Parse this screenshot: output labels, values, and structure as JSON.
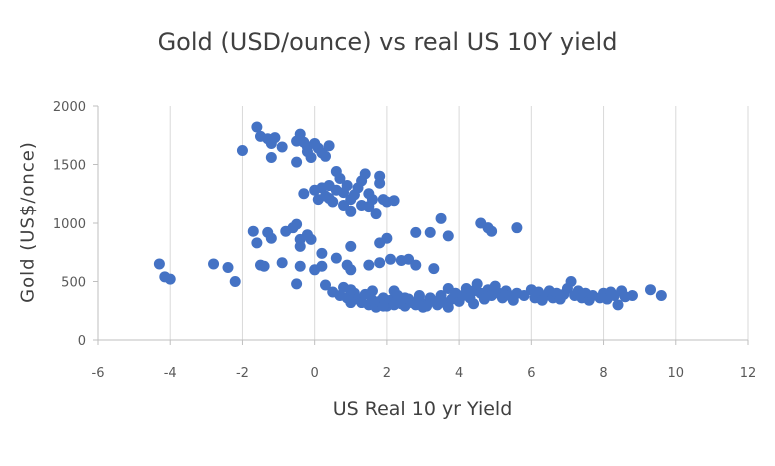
{
  "chart_data": {
    "type": "scatter",
    "title": "Gold (USD/ounce)  vs real US 10Y yield",
    "xlabel": "US Real 10 yr Yield",
    "ylabel": "Gold (US$/once)",
    "xlim": [
      -6,
      12
    ],
    "ylim": [
      0,
      2000
    ],
    "x_ticks": [
      -6,
      -4,
      -2,
      0,
      2,
      4,
      6,
      8,
      10,
      12
    ],
    "y_ticks": [
      0,
      500,
      1000,
      1500,
      2000
    ],
    "grid": "vertical",
    "legend": "none",
    "colors": {
      "point": "#4472c4",
      "grid": "#d9d9d9",
      "axis": "#bfbfbf"
    },
    "series": [
      {
        "points": [
          [
            -4.3,
            650
          ],
          [
            -4.15,
            540
          ],
          [
            -4.0,
            520
          ],
          [
            -2.8,
            650
          ],
          [
            -2.4,
            620
          ],
          [
            -2.2,
            500
          ],
          [
            -2.0,
            1620
          ],
          [
            -1.6,
            1820
          ],
          [
            -1.5,
            1740
          ],
          [
            -1.3,
            1720
          ],
          [
            -1.2,
            1680
          ],
          [
            -1.1,
            1730
          ],
          [
            -1.2,
            1560
          ],
          [
            -0.9,
            1650
          ],
          [
            -0.5,
            1700
          ],
          [
            -0.4,
            1760
          ],
          [
            -0.3,
            1690
          ],
          [
            -0.2,
            1650
          ],
          [
            -0.5,
            1520
          ],
          [
            -0.1,
            1560
          ],
          [
            0.1,
            1640
          ],
          [
            0.2,
            1600
          ],
          [
            0.4,
            1660
          ],
          [
            0.3,
            1570
          ],
          [
            0.0,
            1680
          ],
          [
            -0.2,
            1610
          ],
          [
            -0.3,
            1250
          ],
          [
            0.0,
            1280
          ],
          [
            0.1,
            1200
          ],
          [
            0.2,
            1300
          ],
          [
            0.3,
            1230
          ],
          [
            0.4,
            1320
          ],
          [
            0.5,
            1180
          ],
          [
            0.6,
            1280
          ],
          [
            0.6,
            1440
          ],
          [
            0.7,
            1380
          ],
          [
            0.8,
            1260
          ],
          [
            0.9,
            1320
          ],
          [
            1.0,
            1200
          ],
          [
            1.0,
            1100
          ],
          [
            1.1,
            1240
          ],
          [
            1.2,
            1300
          ],
          [
            1.3,
            1360
          ],
          [
            1.4,
            1420
          ],
          [
            1.5,
            1250
          ],
          [
            1.5,
            1140
          ],
          [
            1.6,
            1200
          ],
          [
            1.7,
            1080
          ],
          [
            1.8,
            1340
          ],
          [
            1.8,
            1400
          ],
          [
            1.9,
            1200
          ],
          [
            2.0,
            1180
          ],
          [
            2.2,
            1190
          ],
          [
            1.3,
            1150
          ],
          [
            0.8,
            1150
          ],
          [
            0.4,
            1210
          ],
          [
            -1.7,
            930
          ],
          [
            -1.6,
            830
          ],
          [
            -1.3,
            920
          ],
          [
            -1.2,
            870
          ],
          [
            -0.8,
            930
          ],
          [
            -0.6,
            960
          ],
          [
            -0.5,
            990
          ],
          [
            -0.4,
            860
          ],
          [
            -0.2,
            900
          ],
          [
            -0.1,
            860
          ],
          [
            -0.4,
            800
          ],
          [
            0.2,
            740
          ],
          [
            0.6,
            700
          ],
          [
            1.0,
            800
          ],
          [
            1.8,
            830
          ],
          [
            2.0,
            870
          ],
          [
            2.1,
            690
          ],
          [
            2.4,
            680
          ],
          [
            2.6,
            690
          ],
          [
            2.8,
            920
          ],
          [
            3.2,
            920
          ],
          [
            3.5,
            1040
          ],
          [
            3.7,
            890
          ],
          [
            4.6,
            1000
          ],
          [
            4.8,
            960
          ],
          [
            4.9,
            930
          ],
          [
            5.6,
            960
          ],
          [
            -1.5,
            640
          ],
          [
            -1.4,
            630
          ],
          [
            -0.9,
            660
          ],
          [
            -0.4,
            630
          ],
          [
            0.0,
            600
          ],
          [
            0.2,
            630
          ],
          [
            -0.5,
            480
          ],
          [
            0.3,
            470
          ],
          [
            0.9,
            640
          ],
          [
            1.0,
            600
          ],
          [
            1.5,
            640
          ],
          [
            1.8,
            660
          ],
          [
            2.8,
            640
          ],
          [
            3.3,
            610
          ],
          [
            0.5,
            410
          ],
          [
            0.7,
            380
          ],
          [
            0.9,
            360
          ],
          [
            1.0,
            430
          ],
          [
            1.1,
            400
          ],
          [
            1.2,
            350
          ],
          [
            1.3,
            320
          ],
          [
            1.4,
            390
          ],
          [
            1.5,
            300
          ],
          [
            1.6,
            340
          ],
          [
            1.7,
            280
          ],
          [
            1.8,
            330
          ],
          [
            1.9,
            360
          ],
          [
            2.0,
            290
          ],
          [
            2.1,
            340
          ],
          [
            2.2,
            300
          ],
          [
            2.3,
            380
          ],
          [
            2.4,
            310
          ],
          [
            2.5,
            290
          ],
          [
            2.6,
            350
          ],
          [
            2.7,
            320
          ],
          [
            2.8,
            300
          ],
          [
            2.9,
            370
          ],
          [
            3.0,
            310
          ],
          [
            3.1,
            290
          ],
          [
            3.2,
            360
          ],
          [
            3.3,
            330
          ],
          [
            3.4,
            300
          ],
          [
            3.5,
            380
          ],
          [
            3.6,
            320
          ],
          [
            3.7,
            280
          ],
          [
            3.8,
            350
          ],
          [
            3.9,
            400
          ],
          [
            4.0,
            330
          ],
          [
            4.1,
            380
          ],
          [
            4.2,
            440
          ],
          [
            4.3,
            360
          ],
          [
            4.4,
            420
          ],
          [
            4.5,
            480
          ],
          [
            4.6,
            400
          ],
          [
            4.7,
            350
          ],
          [
            4.8,
            430
          ],
          [
            4.9,
            380
          ],
          [
            5.0,
            460
          ],
          [
            5.1,
            400
          ],
          [
            5.2,
            360
          ],
          [
            5.3,
            420
          ],
          [
            5.4,
            380
          ],
          [
            5.5,
            340
          ],
          [
            5.6,
            400
          ],
          [
            5.8,
            380
          ],
          [
            6.0,
            430
          ],
          [
            6.1,
            360
          ],
          [
            6.2,
            410
          ],
          [
            6.3,
            340
          ],
          [
            6.4,
            380
          ],
          [
            6.5,
            420
          ],
          [
            6.6,
            360
          ],
          [
            6.7,
            400
          ],
          [
            6.8,
            350
          ],
          [
            6.9,
            390
          ],
          [
            7.0,
            440
          ],
          [
            7.1,
            500
          ],
          [
            7.2,
            380
          ],
          [
            7.3,
            420
          ],
          [
            7.4,
            360
          ],
          [
            7.5,
            400
          ],
          [
            7.6,
            340
          ],
          [
            7.7,
            380
          ],
          [
            7.9,
            360
          ],
          [
            8.0,
            400
          ],
          [
            8.1,
            350
          ],
          [
            8.2,
            410
          ],
          [
            8.3,
            380
          ],
          [
            8.4,
            300
          ],
          [
            8.5,
            420
          ],
          [
            8.6,
            370
          ],
          [
            8.8,
            380
          ],
          [
            9.3,
            430
          ],
          [
            9.6,
            380
          ],
          [
            1.0,
            320
          ],
          [
            1.6,
            420
          ],
          [
            2.2,
            420
          ],
          [
            2.9,
            380
          ],
          [
            3.7,
            440
          ],
          [
            4.4,
            310
          ],
          [
            3.0,
            280
          ],
          [
            2.5,
            360
          ],
          [
            1.9,
            290
          ],
          [
            0.8,
            450
          ]
        ]
      }
    ]
  }
}
